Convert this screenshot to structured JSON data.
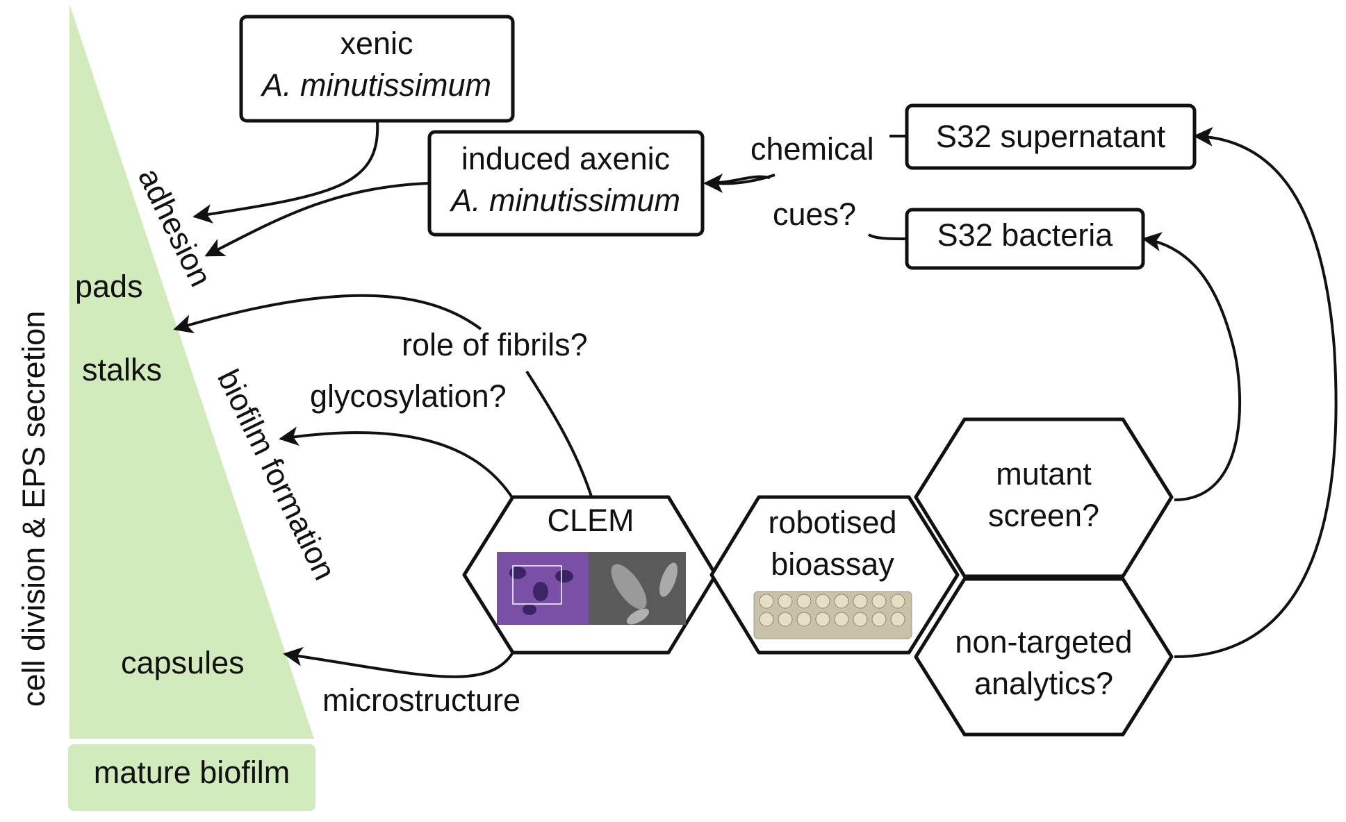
{
  "colors": {
    "wedge": "#d1ebbd",
    "line": "#111111",
    "text": "#111111",
    "clem_fluorescence": "#7a4fa6",
    "clem_em": "#5a5a5a",
    "plate": "#c9c2a8"
  },
  "left_panel": {
    "vertical_label": "cell division & EPS secretion",
    "adhesion": "adhesion",
    "pads": "pads",
    "stalks": "stalks",
    "biofilm_formation": "biofilm formation",
    "capsules": "capsules",
    "mature_biofilm": "mature biofilm"
  },
  "boxes": {
    "xenic_line1": "xenic",
    "xenic_line2": "A. minutissimum",
    "induced_line1": "induced axenic",
    "induced_line2": "A. minutissimum",
    "s32_supernatant": "S32 supernatant",
    "s32_bacteria": "S32 bacteria"
  },
  "edge_labels": {
    "chemical": "chemical",
    "cues": "cues?",
    "role_of_fibrils": "role of fibrils?",
    "glycosylation": "glycosylation?",
    "microstructure": "microstructure"
  },
  "hexagons": {
    "clem": "CLEM",
    "robotised_line1": "robotised",
    "robotised_line2": "bioassay",
    "mutant_line1": "mutant",
    "mutant_line2": "screen?",
    "nontargeted_line1": "non-targeted",
    "nontargeted_line2": "analytics?"
  },
  "icons": {
    "clem_image": "clem-micrograph-icon",
    "plate_image": "well-plate-icon"
  }
}
